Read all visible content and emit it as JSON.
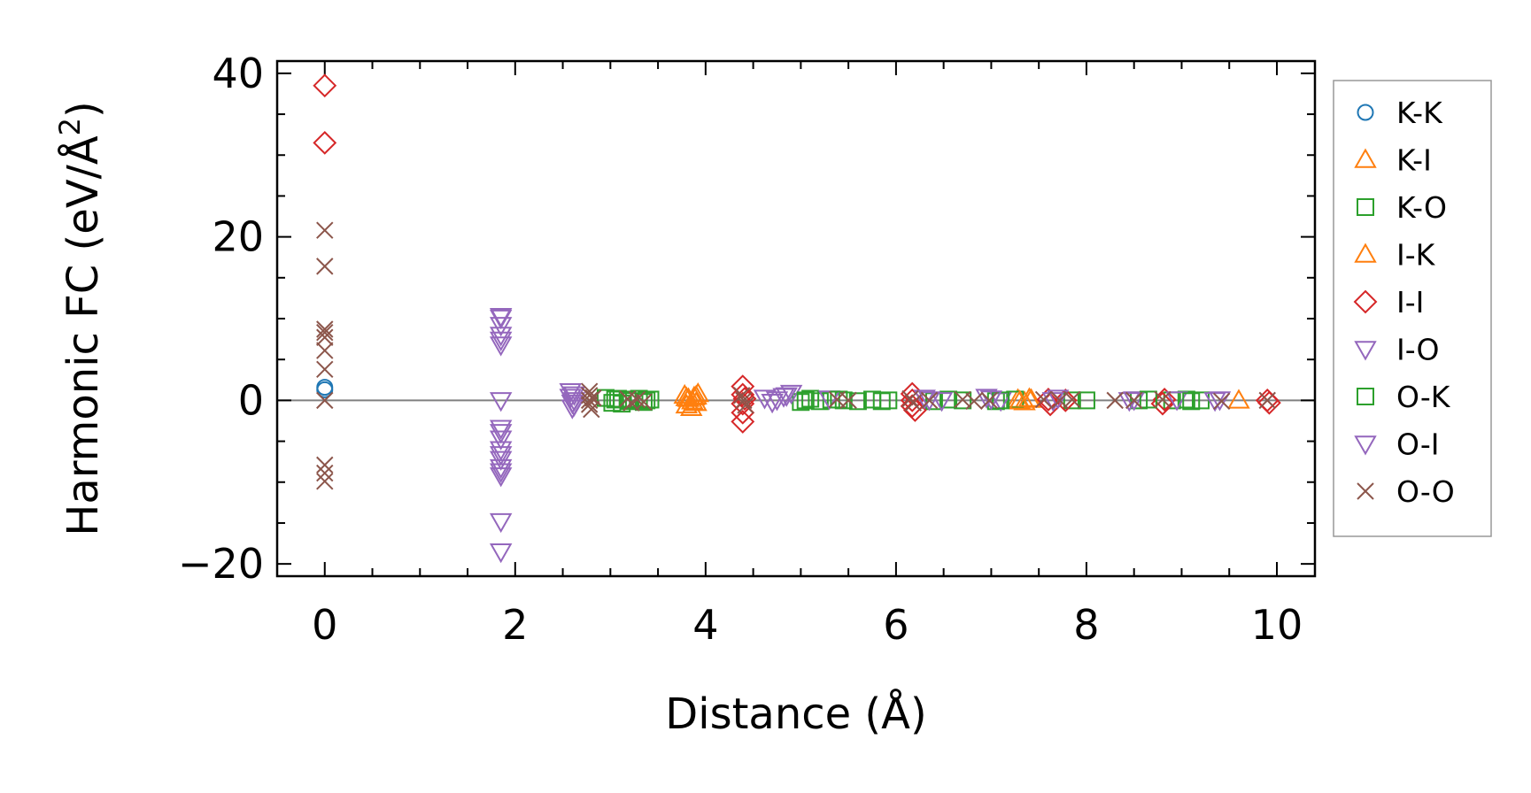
{
  "chart_data": {
    "type": "scatter",
    "title": "",
    "xlabel": "Distance (Å)",
    "ylabel_main": "Harmonic FC (eV/Å",
    "ylabel_sup": "2",
    "ylabel_close": ")",
    "xlim": [
      -0.5,
      10.4
    ],
    "ylim": [
      -21.5,
      41.5
    ],
    "xticks": [
      0,
      2,
      4,
      6,
      8,
      10
    ],
    "xtick_labels": [
      "0",
      "2",
      "4",
      "6",
      "8",
      "10"
    ],
    "yticks": [
      -20,
      0,
      20,
      40
    ],
    "ytick_labels": [
      "−20",
      "0",
      "20",
      "40"
    ],
    "zero_line": true,
    "grid": false,
    "legend_position": "outside-right",
    "series": [
      {
        "name": "K-K",
        "marker": "circle",
        "color": "#1f77b4",
        "points": [
          [
            0,
            1.3
          ],
          [
            0,
            1.6
          ]
        ]
      },
      {
        "name": "K-I",
        "marker": "triangle-up",
        "color": "#ff7f0e",
        "points": [
          [
            3.78,
            0.6
          ],
          [
            3.8,
            -0.6
          ],
          [
            3.82,
            0.2
          ],
          [
            3.85,
            -0.9
          ],
          [
            3.88,
            0.4
          ],
          [
            3.9,
            -0.3
          ],
          [
            3.92,
            0.8
          ],
          [
            7.28,
            0.1
          ],
          [
            7.35,
            -0.2
          ],
          [
            7.42,
            0.1
          ],
          [
            9.6,
            0.0
          ]
        ]
      },
      {
        "name": "K-O",
        "marker": "square",
        "color": "#2ca02c",
        "points": [
          [
            2.95,
            0.3
          ],
          [
            3.02,
            -0.3
          ],
          [
            3.08,
            0.2
          ],
          [
            3.12,
            -0.4
          ],
          [
            3.18,
            0.1
          ],
          [
            3.3,
            0.2
          ],
          [
            3.35,
            -0.2
          ],
          [
            3.42,
            0.1
          ],
          [
            5.0,
            -0.2
          ],
          [
            5.1,
            0.2
          ],
          [
            5.2,
            -0.1
          ],
          [
            5.32,
            0.1
          ],
          [
            5.45,
            0.0
          ],
          [
            5.6,
            -0.1
          ],
          [
            5.75,
            0.1
          ],
          [
            5.92,
            0.0
          ],
          [
            6.4,
            -0.1
          ],
          [
            6.55,
            0.1
          ],
          [
            6.7,
            0.0
          ],
          [
            7.05,
            -0.1
          ],
          [
            7.25,
            0.1
          ],
          [
            7.85,
            0.0
          ],
          [
            8.55,
            0.0
          ],
          [
            8.9,
            0.0
          ],
          [
            9.05,
            0.1
          ],
          [
            9.2,
            0.0
          ]
        ]
      },
      {
        "name": "I-K",
        "marker": "triangle-up",
        "color": "#ff7f0e",
        "points": [
          [
            3.8,
            0.3
          ],
          [
            3.86,
            -0.1
          ],
          [
            3.9,
            0.5
          ],
          [
            7.3,
            -0.1
          ],
          [
            7.4,
            0.2
          ]
        ]
      },
      {
        "name": "I-I",
        "marker": "diamond",
        "color": "#d62728",
        "points": [
          [
            0,
            38.5
          ],
          [
            0,
            31.5
          ],
          [
            4.39,
            1.7
          ],
          [
            4.39,
            0.7
          ],
          [
            4.39,
            -0.4
          ],
          [
            4.39,
            -1.5
          ],
          [
            4.39,
            -2.6
          ],
          [
            4.41,
            0.2
          ],
          [
            6.17,
            0.8
          ],
          [
            6.17,
            0.0
          ],
          [
            6.17,
            -0.7
          ],
          [
            6.2,
            -1.2
          ],
          [
            7.6,
            0.1
          ],
          [
            7.62,
            -0.5
          ],
          [
            7.78,
            0.0
          ],
          [
            8.8,
            -0.4
          ],
          [
            8.82,
            0.1
          ],
          [
            9.9,
            0.0
          ],
          [
            9.92,
            -0.3
          ]
        ]
      },
      {
        "name": "I-O",
        "marker": "triangle-down",
        "color": "#9467bd",
        "points": [
          [
            1.85,
            10.3
          ],
          [
            1.85,
            9.2
          ],
          [
            1.85,
            8.0
          ],
          [
            1.85,
            6.8
          ],
          [
            1.85,
            0.0
          ],
          [
            1.85,
            -3.4
          ],
          [
            1.85,
            -4.7
          ],
          [
            1.85,
            -6.0
          ],
          [
            1.85,
            -7.2
          ],
          [
            1.85,
            -8.2
          ],
          [
            1.85,
            -9.2
          ],
          [
            1.85,
            -14.8
          ],
          [
            1.85,
            -18.5
          ],
          [
            2.58,
            1.1
          ],
          [
            2.58,
            0.4
          ],
          [
            2.6,
            -0.3
          ],
          [
            2.6,
            -0.9
          ],
          [
            2.62,
            0.7
          ],
          [
            4.62,
            0.3
          ],
          [
            4.7,
            -0.2
          ],
          [
            4.82,
            0.5
          ],
          [
            4.9,
            0.9
          ],
          [
            5.3,
            0.2
          ],
          [
            6.3,
            0.3
          ],
          [
            6.48,
            0.0
          ],
          [
            6.95,
            0.4
          ],
          [
            7.1,
            0.0
          ],
          [
            7.7,
            0.3
          ],
          [
            8.5,
            0.1
          ],
          [
            8.95,
            0.1
          ],
          [
            9.4,
            0.1
          ]
        ]
      },
      {
        "name": "O-K",
        "marker": "square",
        "color": "#2ca02c",
        "points": [
          [
            3.05,
            0.1
          ],
          [
            3.2,
            -0.1
          ],
          [
            3.38,
            0.0
          ],
          [
            5.05,
            0.0
          ],
          [
            5.4,
            0.1
          ],
          [
            5.85,
            -0.1
          ],
          [
            7.1,
            0.0
          ],
          [
            8.0,
            0.0
          ],
          [
            8.65,
            0.1
          ],
          [
            9.1,
            -0.1
          ]
        ]
      },
      {
        "name": "O-I",
        "marker": "triangle-down",
        "color": "#9467bd",
        "points": [
          [
            1.85,
            10.1
          ],
          [
            1.85,
            7.4
          ],
          [
            1.85,
            -3.9
          ],
          [
            1.85,
            -6.6
          ],
          [
            1.85,
            -8.7
          ],
          [
            2.62,
            0.0
          ],
          [
            2.62,
            -0.6
          ],
          [
            4.75,
            0.1
          ],
          [
            4.85,
            0.6
          ],
          [
            6.35,
            0.1
          ],
          [
            7.0,
            0.2
          ],
          [
            7.65,
            0.0
          ],
          [
            8.45,
            0.0
          ],
          [
            9.35,
            0.0
          ]
        ]
      },
      {
        "name": "O-O",
        "marker": "x",
        "color": "#8c564b",
        "points": [
          [
            0,
            20.8
          ],
          [
            0,
            16.4
          ],
          [
            0,
            8.7
          ],
          [
            0,
            8.3
          ],
          [
            0,
            7.7
          ],
          [
            0,
            6.1
          ],
          [
            0,
            3.8
          ],
          [
            0,
            0.0
          ],
          [
            0,
            -7.9
          ],
          [
            0,
            -8.9
          ],
          [
            0,
            -9.9
          ],
          [
            2.78,
            1.1
          ],
          [
            2.78,
            0.6
          ],
          [
            2.78,
            0.0
          ],
          [
            2.78,
            -0.5
          ],
          [
            2.8,
            -1.1
          ],
          [
            2.82,
            0.3
          ],
          [
            3.18,
            0.2
          ],
          [
            3.22,
            -0.3
          ],
          [
            3.28,
            0.1
          ],
          [
            3.35,
            -0.2
          ],
          [
            4.38,
            0.6
          ],
          [
            4.4,
            0.0
          ],
          [
            4.42,
            -0.6
          ],
          [
            5.38,
            0.1
          ],
          [
            5.5,
            0.0
          ],
          [
            6.15,
            0.2
          ],
          [
            6.18,
            -0.3
          ],
          [
            6.35,
            0.0
          ],
          [
            6.7,
            0.1
          ],
          [
            6.82,
            -0.1
          ],
          [
            6.98,
            0.0
          ],
          [
            7.55,
            0.1
          ],
          [
            7.72,
            0.0
          ],
          [
            7.85,
            0.1
          ],
          [
            8.3,
            0.0
          ],
          [
            8.5,
            0.0
          ],
          [
            8.8,
            0.1
          ],
          [
            9.42,
            -0.1
          ],
          [
            9.9,
            0.0
          ]
        ]
      }
    ]
  }
}
